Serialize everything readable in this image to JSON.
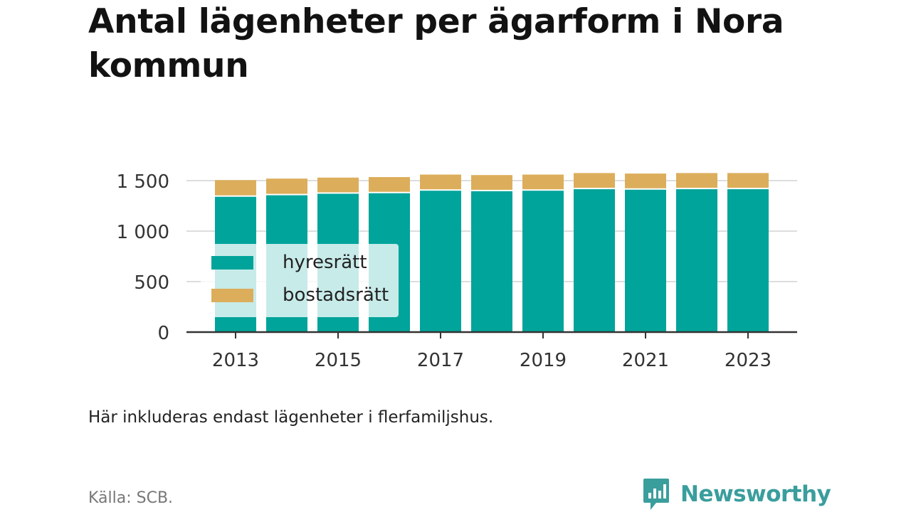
{
  "title": "Antal lägenheter per ägarform i Nora kommun",
  "note": "Här inkluderas endast lägenheter i flerfamiljshus.",
  "source": "Källa: SCB.",
  "brand": "Newsworthy",
  "colors": {
    "hyresratt": "#00a49a",
    "bostadsratt": "#dcae5b",
    "grid": "#dddddd",
    "axis": "#333333",
    "brand": "#3a9e9d"
  },
  "legend": [
    {
      "label": "hyresrätt",
      "color": "#00a49a"
    },
    {
      "label": "bostadsrätt",
      "color": "#dcae5b"
    }
  ],
  "chart_data": {
    "type": "bar",
    "stacked": true,
    "x": [
      2013,
      2014,
      2015,
      2016,
      2017,
      2018,
      2019,
      2020,
      2021,
      2022,
      2023
    ],
    "series": [
      {
        "name": "hyresrätt",
        "values": [
          1340,
          1355,
          1370,
          1375,
          1400,
          1395,
          1400,
          1415,
          1410,
          1415,
          1415
        ]
      },
      {
        "name": "bostadsrätt",
        "values": [
          165,
          165,
          160,
          160,
          160,
          160,
          160,
          160,
          160,
          160,
          160
        ]
      }
    ],
    "x_ticks": [
      "2013",
      "2015",
      "2017",
      "2019",
      "2021",
      "2023"
    ],
    "y_ticks": [
      "0",
      "500",
      "1 000",
      "1 500"
    ],
    "ylim": [
      0,
      1500
    ],
    "grid": true,
    "legend_position": "left"
  }
}
